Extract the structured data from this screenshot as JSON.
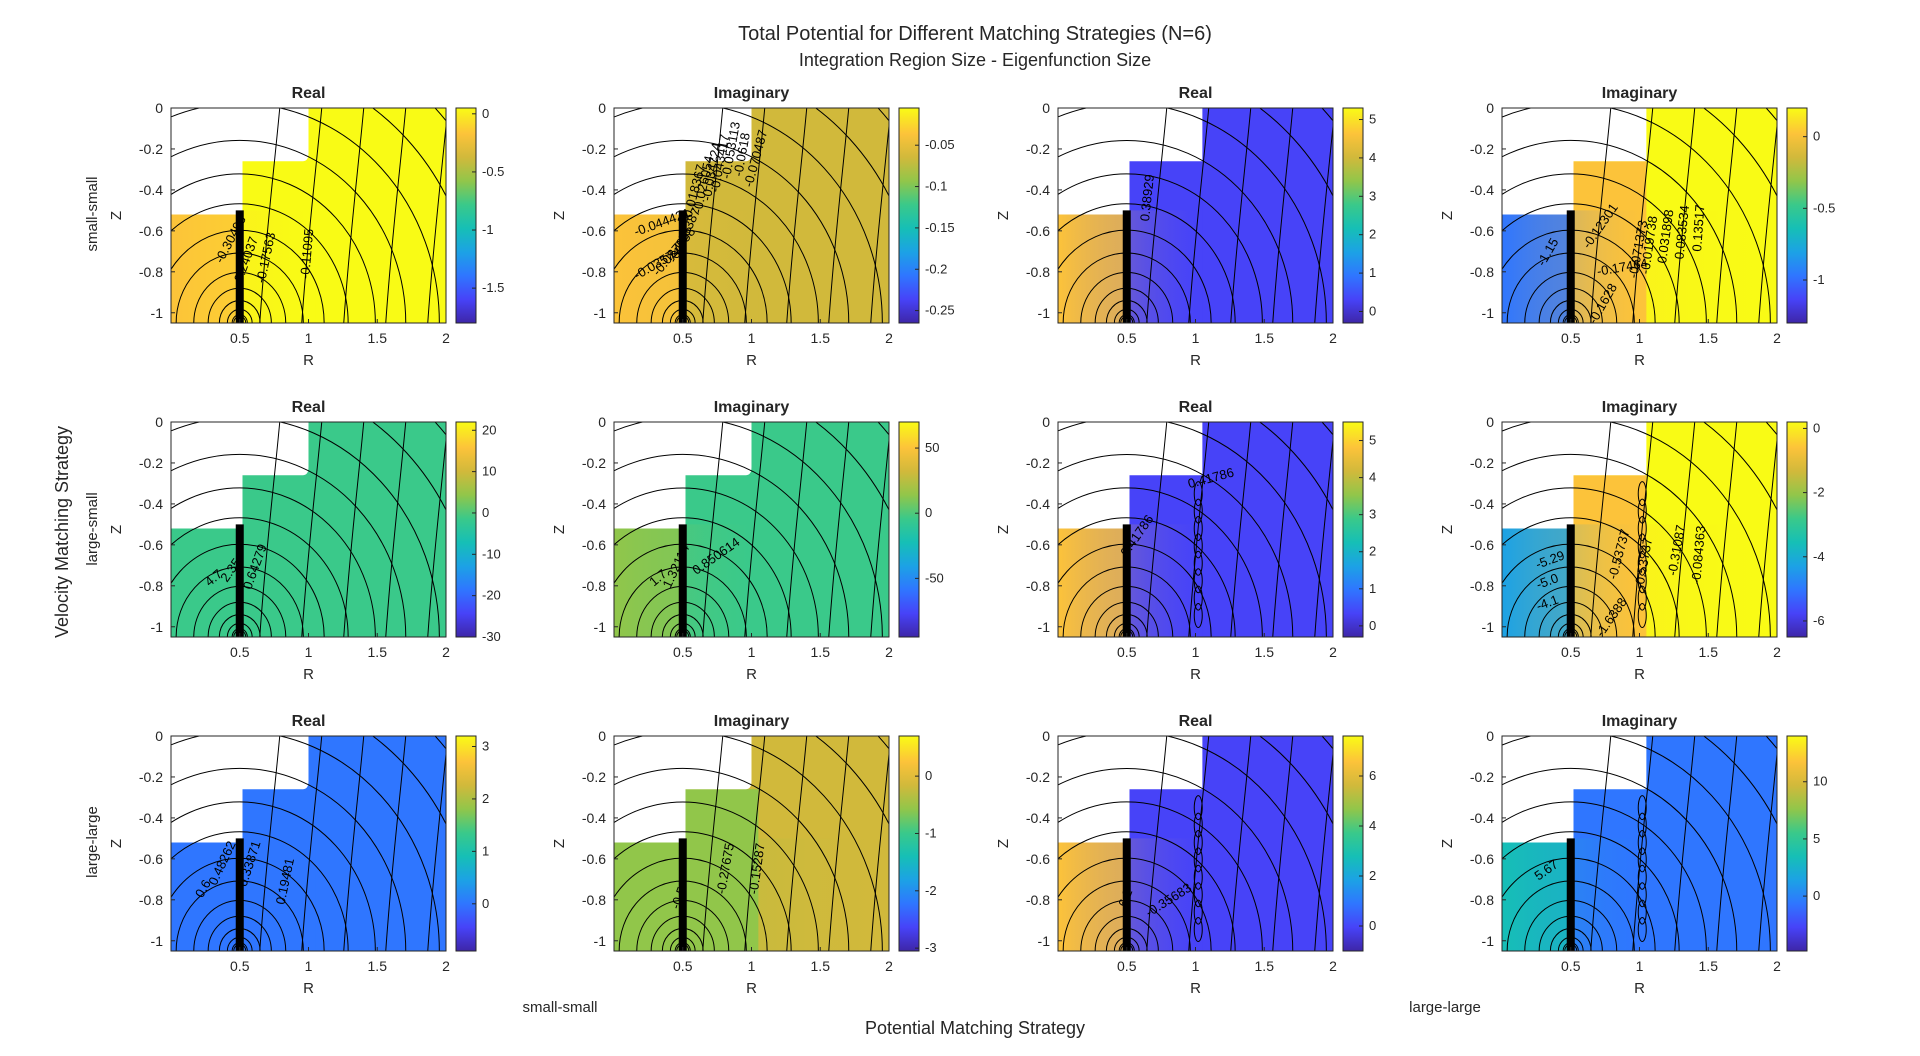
{
  "figure": {
    "title": "Total Potential for Different Matching Strategies (N=6)",
    "subtitle": "Integration Region Size - Eigenfunction Size",
    "ylabel": "Velocity Matching Strategy",
    "xlabel": "Potential Matching Strategy",
    "row_labels": [
      "small-small",
      "large-small",
      "large-large"
    ],
    "col_labels": [
      "small-small",
      "large-large"
    ]
  },
  "colormap": [
    "#3e26a8",
    "#4743f8",
    "#2f76ff",
    "#1ca2e5",
    "#16bfb6",
    "#3ac98a",
    "#91c64a",
    "#d1b93b",
    "#fcc33a",
    "#f9fb15"
  ],
  "chart_data": [
    {
      "type": "contour",
      "panel": "1-1",
      "title": "Real",
      "xlabel": "R",
      "ylabel": "Z",
      "xlim": [
        0,
        2
      ],
      "ylim": [
        -1.05,
        0
      ],
      "xticks": [
        "0.5",
        "1",
        "1.5",
        "2"
      ],
      "yticks": [
        "0",
        "-0.2",
        "-0.4",
        "-0.6",
        "-0.8",
        "-1"
      ],
      "colorbar_ticks": [
        "0",
        "-0.5",
        "-1",
        "-1.5"
      ],
      "colorbar_range": [
        -1.8,
        0.05
      ],
      "contour_labels": [
        "-0.30498",
        "-0.24037",
        "-0.17563",
        "-0.11095"
      ]
    },
    {
      "type": "contour",
      "panel": "1-2",
      "title": "Imaginary",
      "xlabel": "R",
      "ylabel": "Z",
      "xlim": [
        0,
        2
      ],
      "ylim": [
        -1.05,
        0
      ],
      "xticks": [
        "0.5",
        "1",
        "1.5",
        "2"
      ],
      "yticks": [
        "0",
        "-0.2",
        "-0.4",
        "-0.6",
        "-0.8",
        "-1"
      ],
      "colorbar_ticks": [
        "-0.05",
        "-0.1",
        "-0.15",
        "-0.2",
        "-0.25"
      ],
      "colorbar_range": [
        -0.265,
        -0.005
      ],
      "contour_labels": [
        "-0.044421",
        "-0.03574",
        "-0.027058",
        "-0.018387",
        "-0.018367",
        "-0.026054",
        "-0.034724",
        "-0.043417",
        "-0.053113",
        "-0.0618",
        "-0.070487"
      ]
    },
    {
      "type": "contour",
      "panel": "1-3",
      "title": "Real",
      "xlabel": "R",
      "ylabel": "Z",
      "xlim": [
        0,
        2
      ],
      "ylim": [
        -1.05,
        0
      ],
      "xticks": [
        "0.5",
        "1",
        "1.5",
        "2"
      ],
      "yticks": [
        "0",
        "-0.2",
        "-0.4",
        "-0.6",
        "-0.8",
        "-1"
      ],
      "colorbar_ticks": [
        "5",
        "4",
        "3",
        "2",
        "1",
        "0"
      ],
      "colorbar_range": [
        -0.3,
        5.3
      ],
      "contour_labels": [
        "0.38929"
      ]
    },
    {
      "type": "contour",
      "panel": "1-4",
      "title": "Imaginary",
      "xlabel": "R",
      "ylabel": "Z",
      "xlim": [
        0,
        2
      ],
      "ylim": [
        -1.05,
        0
      ],
      "xticks": [
        "0.5",
        "1",
        "1.5",
        "2"
      ],
      "yticks": [
        "0",
        "-0.2",
        "-0.4",
        "-0.6",
        "-0.8",
        "-1"
      ],
      "colorbar_ticks": [
        "0",
        "-0.5",
        "-1"
      ],
      "colorbar_range": [
        -1.3,
        0.2
      ],
      "contour_labels": [
        "-1.15",
        "-0.12301",
        "-0.17464",
        "-0.071373",
        "-0.019738",
        "0.031898",
        "0.083534",
        "0.13517",
        "-0.1628"
      ]
    },
    {
      "type": "contour",
      "panel": "2-1",
      "title": "Real",
      "xlabel": "R",
      "ylabel": "Z",
      "xlim": [
        0,
        2
      ],
      "ylim": [
        -1.05,
        0
      ],
      "xticks": [
        "0.5",
        "1",
        "1.5",
        "2"
      ],
      "yticks": [
        "0",
        "-0.2",
        "-0.4",
        "-0.6",
        "-0.8",
        "-1"
      ],
      "colorbar_ticks": [
        "20",
        "10",
        "0",
        "-10",
        "-20",
        "-30"
      ],
      "colorbar_range": [
        -30,
        22
      ],
      "contour_labels": [
        "4.7",
        "2.35",
        "0.64279"
      ]
    },
    {
      "type": "contour",
      "panel": "2-2",
      "title": "Imaginary",
      "xlabel": "R",
      "ylabel": "Z",
      "xlim": [
        0,
        2
      ],
      "ylim": [
        -1.05,
        0
      ],
      "xticks": [
        "0.5",
        "1",
        "1.5",
        "2"
      ],
      "yticks": [
        "0",
        "-0.2",
        "-0.4",
        "-0.6",
        "-0.8",
        "-1"
      ],
      "colorbar_ticks": [
        "50",
        "0",
        "-50"
      ],
      "colorbar_range": [
        -95,
        70
      ],
      "contour_labels": [
        "1.7",
        "1.32114",
        "0.850614"
      ]
    },
    {
      "type": "contour",
      "panel": "2-3",
      "title": "Real",
      "xlabel": "R",
      "ylabel": "Z",
      "xlim": [
        0,
        2
      ],
      "ylim": [
        -1.05,
        0
      ],
      "xticks": [
        "0.5",
        "1",
        "1.5",
        "2"
      ],
      "yticks": [
        "0",
        "-0.2",
        "-0.4",
        "-0.6",
        "-0.8",
        "-1"
      ],
      "colorbar_ticks": [
        "5",
        "4",
        "3",
        "2",
        "1",
        "0"
      ],
      "colorbar_range": [
        -0.3,
        5.5
      ],
      "contour_labels": [
        "0.41786",
        "0.41786"
      ]
    },
    {
      "type": "contour",
      "panel": "2-4",
      "title": "Imaginary",
      "xlabel": "R",
      "ylabel": "Z",
      "xlim": [
        0,
        2
      ],
      "ylim": [
        -1.05,
        0
      ],
      "xticks": [
        "0.5",
        "1",
        "1.5",
        "2"
      ],
      "yticks": [
        "0",
        "-0.2",
        "-0.4",
        "-0.6",
        "-0.8",
        "-1"
      ],
      "colorbar_ticks": [
        "0",
        "-2",
        "-4",
        "-6"
      ],
      "colorbar_range": [
        -6.5,
        0.2
      ],
      "contour_labels": [
        "-5.29",
        "-5.0",
        "-4.1",
        "-0.53737",
        "-0.53737",
        "-0.31087",
        "-0.084363",
        "-1.6388"
      ]
    },
    {
      "type": "contour",
      "panel": "3-1",
      "title": "Real",
      "xlabel": "R",
      "ylabel": "Z",
      "xlim": [
        0,
        2
      ],
      "ylim": [
        -1.05,
        0
      ],
      "xticks": [
        "0.5",
        "1",
        "1.5",
        "2"
      ],
      "yticks": [
        "0",
        "-0.2",
        "-0.4",
        "-0.6",
        "-0.8",
        "-1"
      ],
      "colorbar_ticks": [
        "3",
        "2",
        "1",
        "0"
      ],
      "colorbar_range": [
        -0.9,
        3.2
      ],
      "contour_labels": [
        "0.6",
        "0.48262",
        "0.33871",
        "0.19481"
      ]
    },
    {
      "type": "contour",
      "panel": "3-2",
      "title": "Imaginary",
      "xlabel": "R",
      "ylabel": "Z",
      "xlim": [
        0,
        2
      ],
      "ylim": [
        -1.05,
        0
      ],
      "xticks": [
        "0.5",
        "1",
        "1.5",
        "2"
      ],
      "yticks": [
        "0",
        "-0.2",
        "-0.4",
        "-0.6",
        "-0.8",
        "-1"
      ],
      "colorbar_ticks": [
        "0",
        "-1",
        "-2",
        "-3"
      ],
      "colorbar_range": [
        -3.05,
        0.7
      ],
      "contour_labels": [
        "-0.5",
        "-0.27675",
        "-0.15287"
      ]
    },
    {
      "type": "contour",
      "panel": "3-3",
      "title": "Real",
      "xlabel": "R",
      "ylabel": "Z",
      "xlim": [
        0,
        2
      ],
      "ylim": [
        -1.05,
        0
      ],
      "xticks": [
        "0.5",
        "1",
        "1.5",
        "2"
      ],
      "yticks": [
        "0",
        "-0.2",
        "-0.4",
        "-0.6",
        "-0.8",
        "-1"
      ],
      "colorbar_ticks": [
        "6",
        "4",
        "2",
        "0"
      ],
      "colorbar_range": [
        -1.0,
        7.6
      ],
      "contour_labels": [
        "6.2",
        "-0.35683"
      ]
    },
    {
      "type": "contour",
      "panel": "3-4",
      "title": "Imaginary",
      "xlabel": "R",
      "ylabel": "Z",
      "xlim": [
        0,
        2
      ],
      "ylim": [
        -1.05,
        0
      ],
      "xticks": [
        "0.5",
        "1",
        "1.5",
        "2"
      ],
      "yticks": [
        "0",
        "-0.2",
        "-0.4",
        "-0.6",
        "-0.8",
        "-1"
      ],
      "colorbar_ticks": [
        "10",
        "5",
        "0"
      ],
      "colorbar_range": [
        -4.8,
        14.0
      ],
      "contour_labels": [
        "5.67"
      ]
    }
  ]
}
